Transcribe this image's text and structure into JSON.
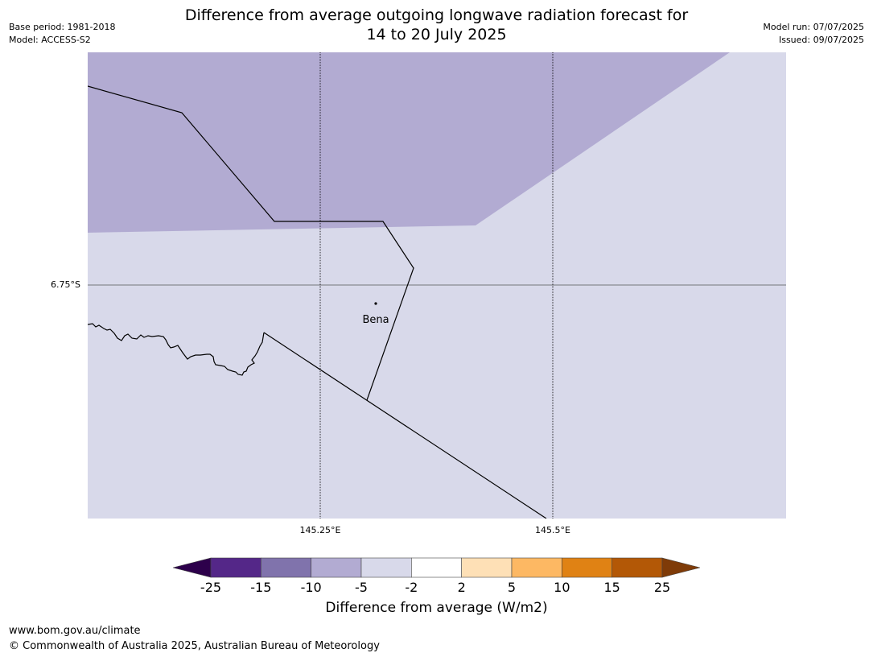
{
  "header": {
    "base_period": "Base period: 1981-2018",
    "model": "Model: ACCESS-S2",
    "title_line1": "Difference from average outgoing longwave radiation forecast for",
    "title_line2": "14 to 20 July 2025",
    "model_run": "Model run: 07/07/2025",
    "issued": "Issued: 09/07/2025"
  },
  "map": {
    "lat_label": "6.75°S",
    "lon_labels": [
      "145.25°E",
      "145.5°E"
    ],
    "place_name": "Bena",
    "fill_colors": {
      "upper_region": "#b2abd2",
      "lower_region": "#d8d9ea"
    }
  },
  "colorbar": {
    "ticks": [
      "-25",
      "-15",
      "-10",
      "-5",
      "-2",
      "2",
      "5",
      "10",
      "15",
      "25"
    ],
    "colors": [
      "#2d004b",
      "#542788",
      "#8073ac",
      "#b2abd2",
      "#d8d9ea",
      "#ffffff",
      "#fee0b6",
      "#fdb863",
      "#e08214",
      "#b35806",
      "#7f3b08"
    ],
    "label": "Difference from average (W/m2)"
  },
  "footer": {
    "url": "www.bom.gov.au/climate",
    "copyright": "© Commonwealth of Australia 2025, Australian Bureau of Meteorology"
  }
}
